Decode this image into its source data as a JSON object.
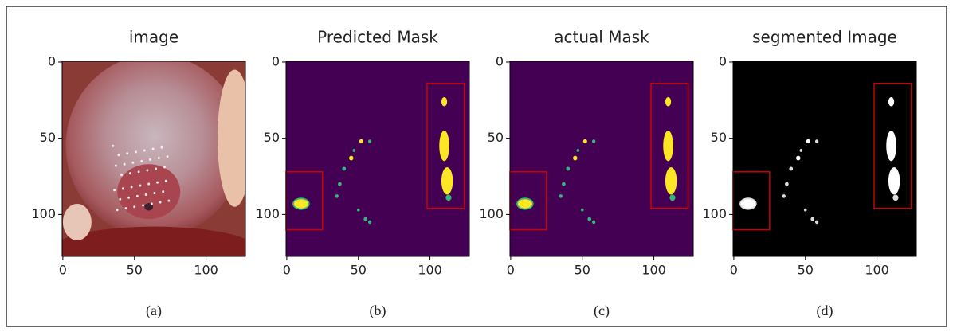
{
  "chart_data": [
    {
      "type": "image",
      "title": "image",
      "caption": "(a)",
      "style": "photo",
      "xlim": [
        -0.5,
        127.5
      ],
      "ylim": [
        127.5,
        -0.5
      ],
      "xticks": [
        0,
        50,
        100
      ],
      "yticks": [
        0,
        50,
        100
      ]
    },
    {
      "type": "image",
      "title": "Predicted Mask",
      "caption": "(b)",
      "style": "mask",
      "xlim": [
        -0.5,
        127.5
      ],
      "ylim": [
        127.5,
        -0.5
      ],
      "xticks": [
        0,
        50,
        100
      ],
      "yticks": [
        0,
        50,
        100
      ]
    },
    {
      "type": "image",
      "title": "actual Mask",
      "caption": "(c)",
      "style": "mask",
      "xlim": [
        -0.5,
        127.5
      ],
      "ylim": [
        127.5,
        -0.5
      ],
      "xticks": [
        0,
        50,
        100
      ],
      "yticks": [
        0,
        50,
        100
      ]
    },
    {
      "type": "image",
      "title": "segmented Image",
      "caption": "(d)",
      "style": "binary",
      "xlim": [
        -0.5,
        127.5
      ],
      "ylim": [
        127.5,
        -0.5
      ],
      "xticks": [
        0,
        50,
        100
      ],
      "yticks": [
        0,
        50,
        100
      ]
    }
  ]
}
